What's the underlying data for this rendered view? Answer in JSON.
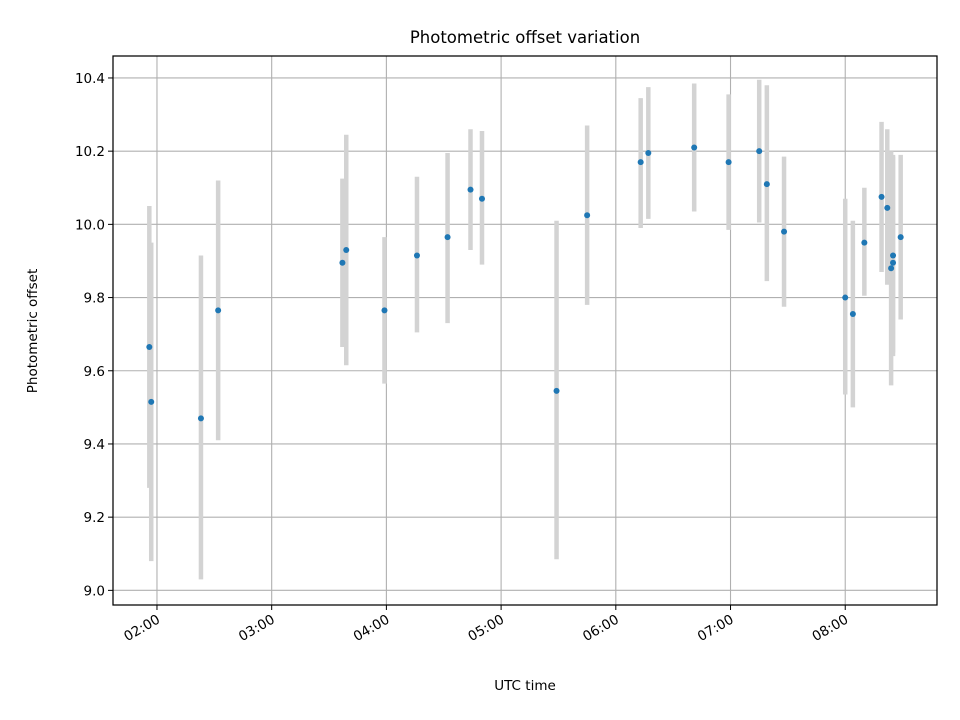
{
  "chart_data": {
    "type": "scatter",
    "title": "Photometric offset variation",
    "xlabel": "UTC time",
    "ylabel": "Photometric offset",
    "x_unit": "UTC time (HH:MM)",
    "xlim": [
      "01:37",
      "08:48"
    ],
    "ylim": [
      8.96,
      10.46
    ],
    "xticks": [
      "02:00",
      "03:00",
      "04:00",
      "05:00",
      "06:00",
      "07:00",
      "08:00"
    ],
    "yticks": [
      "9.0",
      "9.2",
      "9.4",
      "9.6",
      "9.8",
      "10.0",
      "10.2",
      "10.4"
    ],
    "grid": true,
    "errorbars": "vertical",
    "colors": {
      "points": "#1f77b4",
      "errorbars": "#d3d3d3",
      "grid": "#b0b0b0",
      "axes": "#000000"
    },
    "series": [
      {
        "points": [
          {
            "x": "01:56",
            "y": 9.665,
            "lo": 9.28,
            "hi": 10.05
          },
          {
            "x": "01:57",
            "y": 9.515,
            "lo": 9.08,
            "hi": 9.95
          },
          {
            "x": "02:23",
            "y": 9.47,
            "lo": 9.03,
            "hi": 9.915
          },
          {
            "x": "02:32",
            "y": 9.765,
            "lo": 9.41,
            "hi": 10.12
          },
          {
            "x": "03:37",
            "y": 9.895,
            "lo": 9.665,
            "hi": 10.125
          },
          {
            "x": "03:39",
            "y": 9.93,
            "lo": 9.615,
            "hi": 10.245
          },
          {
            "x": "03:59",
            "y": 9.765,
            "lo": 9.565,
            "hi": 9.965
          },
          {
            "x": "04:16",
            "y": 9.915,
            "lo": 9.705,
            "hi": 10.13
          },
          {
            "x": "04:32",
            "y": 9.965,
            "lo": 9.73,
            "hi": 10.195
          },
          {
            "x": "04:44",
            "y": 10.095,
            "lo": 9.93,
            "hi": 10.26
          },
          {
            "x": "04:50",
            "y": 10.07,
            "lo": 9.89,
            "hi": 10.255
          },
          {
            "x": "05:29",
            "y": 9.545,
            "lo": 9.085,
            "hi": 10.01
          },
          {
            "x": "05:45",
            "y": 10.025,
            "lo": 9.78,
            "hi": 10.27
          },
          {
            "x": "06:13",
            "y": 10.17,
            "lo": 9.99,
            "hi": 10.345
          },
          {
            "x": "06:17",
            "y": 10.195,
            "lo": 10.015,
            "hi": 10.375
          },
          {
            "x": "06:41",
            "y": 10.21,
            "lo": 10.035,
            "hi": 10.385
          },
          {
            "x": "06:59",
            "y": 10.17,
            "lo": 9.985,
            "hi": 10.355
          },
          {
            "x": "07:15",
            "y": 10.2,
            "lo": 10.005,
            "hi": 10.395
          },
          {
            "x": "07:19",
            "y": 10.11,
            "lo": 9.845,
            "hi": 10.38
          },
          {
            "x": "07:28",
            "y": 9.98,
            "lo": 9.775,
            "hi": 10.185
          },
          {
            "x": "08:00",
            "y": 9.8,
            "lo": 9.535,
            "hi": 10.07
          },
          {
            "x": "08:04",
            "y": 9.755,
            "lo": 9.5,
            "hi": 10.01
          },
          {
            "x": "08:10",
            "y": 9.95,
            "lo": 9.805,
            "hi": 10.1
          },
          {
            "x": "08:19",
            "y": 10.075,
            "lo": 9.87,
            "hi": 10.28
          },
          {
            "x": "08:22",
            "y": 10.045,
            "lo": 9.835,
            "hi": 10.26
          },
          {
            "x": "08:24",
            "y": 9.88,
            "lo": 9.56,
            "hi": 10.2
          },
          {
            "x": "08:25",
            "y": 9.895,
            "lo": 9.65,
            "hi": 10.19
          },
          {
            "x": "08:25",
            "y": 9.915,
            "lo": 9.64,
            "hi": 10.185
          },
          {
            "x": "08:29",
            "y": 9.965,
            "lo": 9.74,
            "hi": 10.19
          }
        ]
      }
    ]
  }
}
